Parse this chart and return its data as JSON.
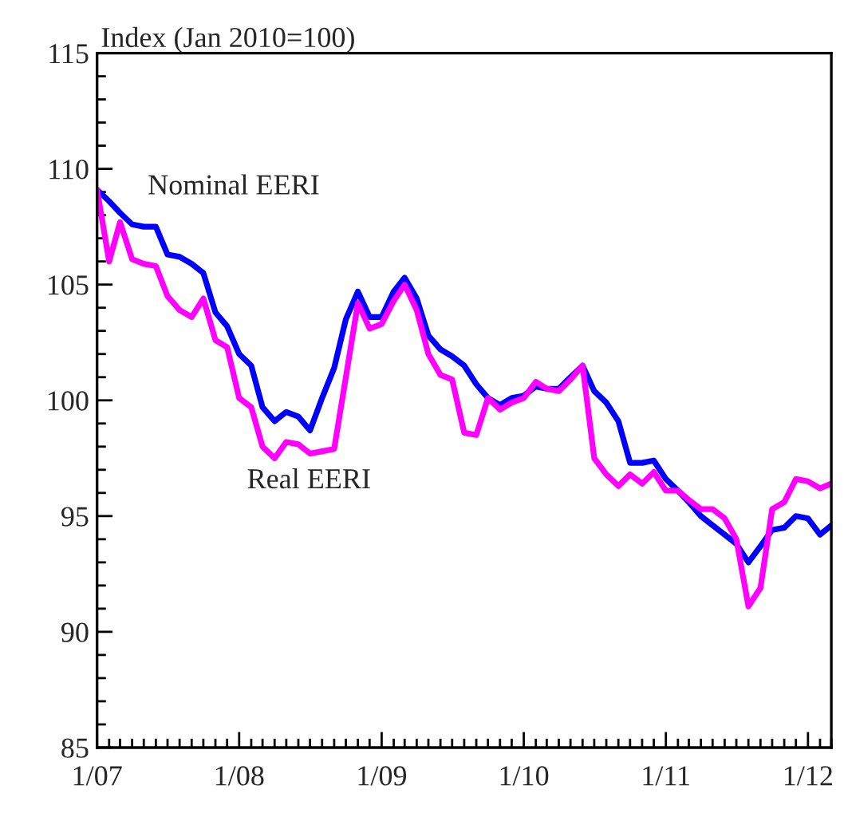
{
  "chart_data": {
    "type": "line",
    "ylabel": "Index (Jan 2010=100)",
    "x": [
      "2007-01",
      "2007-02",
      "2007-03",
      "2007-04",
      "2007-05",
      "2007-06",
      "2007-07",
      "2007-08",
      "2007-09",
      "2007-10",
      "2007-11",
      "2007-12",
      "2008-01",
      "2008-02",
      "2008-03",
      "2008-04",
      "2008-05",
      "2008-06",
      "2008-07",
      "2008-08",
      "2008-09",
      "2008-10",
      "2008-11",
      "2008-12",
      "2009-01",
      "2009-02",
      "2009-03",
      "2009-04",
      "2009-05",
      "2009-06",
      "2009-07",
      "2009-08",
      "2009-09",
      "2009-10",
      "2009-11",
      "2009-12",
      "2010-01",
      "2010-02",
      "2010-03",
      "2010-04",
      "2010-05",
      "2010-06",
      "2010-07",
      "2010-08",
      "2010-09",
      "2010-10",
      "2010-11",
      "2010-12",
      "2011-01",
      "2011-02",
      "2011-03",
      "2011-04",
      "2011-05",
      "2011-06",
      "2011-07",
      "2011-08",
      "2011-09",
      "2011-10",
      "2011-11",
      "2011-12",
      "2012-01",
      "2012-02",
      "2012-03"
    ],
    "series": [
      {
        "name": "Nominal EERI",
        "color": "#0000ff",
        "values": [
          109.1,
          108.6,
          108.1,
          107.6,
          107.5,
          107.5,
          106.3,
          106.2,
          105.9,
          105.5,
          103.8,
          103.2,
          102.0,
          101.5,
          99.7,
          99.1,
          99.5,
          99.3,
          98.7,
          100.1,
          101.4,
          103.5,
          104.7,
          103.6,
          103.6,
          104.7,
          105.3,
          104.4,
          102.8,
          102.2,
          101.9,
          101.5,
          100.7,
          100.1,
          99.8,
          100.1,
          100.2,
          100.6,
          100.5,
          100.5,
          101.0,
          101.5,
          100.4,
          99.9,
          99.1,
          97.3,
          97.3,
          97.4,
          96.6,
          96.1,
          95.6,
          95.0,
          94.6,
          94.2,
          93.8,
          93.0,
          93.7,
          94.4,
          94.5,
          95.0,
          94.9,
          94.2,
          94.6
        ]
      },
      {
        "name": "Real EERI",
        "color": "#ff00ff",
        "values": [
          109.1,
          106.0,
          107.7,
          106.1,
          105.9,
          105.8,
          104.5,
          103.9,
          103.6,
          104.4,
          102.6,
          102.3,
          100.1,
          99.7,
          98.0,
          97.5,
          98.2,
          98.1,
          97.7,
          97.8,
          97.9,
          101.0,
          104.2,
          103.1,
          103.3,
          104.3,
          105.0,
          103.9,
          102.0,
          101.1,
          100.9,
          98.6,
          98.5,
          100.1,
          99.6,
          99.9,
          100.1,
          100.8,
          100.5,
          100.4,
          100.9,
          101.5,
          97.5,
          96.8,
          96.3,
          96.8,
          96.4,
          96.9,
          96.1,
          96.1,
          95.7,
          95.3,
          95.3,
          94.9,
          94.0,
          91.1,
          91.9,
          95.3,
          95.6,
          96.6,
          96.5,
          96.2,
          96.4
        ]
      }
    ],
    "xlim": [
      "2007-01",
      "2012-03"
    ],
    "xticks": [
      {
        "value": "2007-01",
        "label": "1/07"
      },
      {
        "value": "2008-01",
        "label": "1/08"
      },
      {
        "value": "2009-01",
        "label": "1/09"
      },
      {
        "value": "2010-01",
        "label": "1/10"
      },
      {
        "value": "2011-01",
        "label": "1/11"
      },
      {
        "value": "2012-01",
        "label": "1/12"
      }
    ],
    "ylim": [
      85,
      115
    ],
    "yticks": [
      85,
      90,
      95,
      100,
      105,
      110,
      115
    ],
    "grid": false,
    "legend": false,
    "line_style": "solid",
    "marker": "none"
  }
}
